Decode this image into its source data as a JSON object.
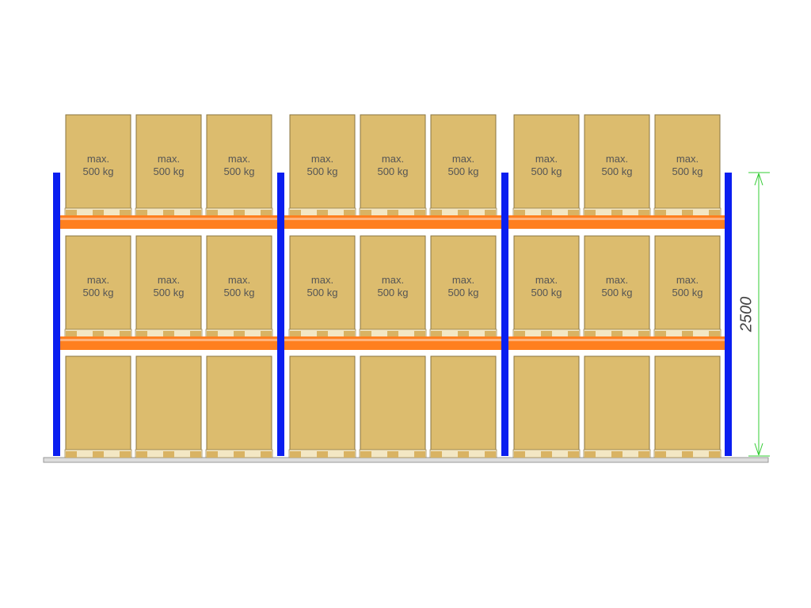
{
  "levels": [
    {
      "boxes": [
        {
          "lines": [
            "max.",
            "500 kg"
          ]
        },
        {
          "lines": [
            "max.",
            "500 kg"
          ]
        },
        {
          "lines": [
            "max.",
            "500 kg"
          ]
        },
        {
          "lines": [
            "max.",
            "500 kg"
          ]
        },
        {
          "lines": [
            "max.",
            "500 kg"
          ]
        },
        {
          "lines": [
            "max.",
            "500 kg"
          ]
        },
        {
          "lines": [
            "max.",
            "500 kg"
          ]
        },
        {
          "lines": [
            "max.",
            "500 kg"
          ]
        },
        {
          "lines": [
            "max.",
            "500 kg"
          ]
        }
      ]
    },
    {
      "boxes": [
        {
          "lines": [
            "max.",
            "500 kg"
          ]
        },
        {
          "lines": [
            "max.",
            "500 kg"
          ]
        },
        {
          "lines": [
            "max.",
            "500 kg"
          ]
        },
        {
          "lines": [
            "max.",
            "500 kg"
          ]
        },
        {
          "lines": [
            "max.",
            "500 kg"
          ]
        },
        {
          "lines": [
            "max.",
            "500 kg"
          ]
        },
        {
          "lines": [
            "max.",
            "500 kg"
          ]
        },
        {
          "lines": [
            "max.",
            "500 kg"
          ]
        },
        {
          "lines": [
            "max.",
            "500 kg"
          ]
        }
      ]
    }
  ],
  "dimension": {
    "label": "2500"
  }
}
